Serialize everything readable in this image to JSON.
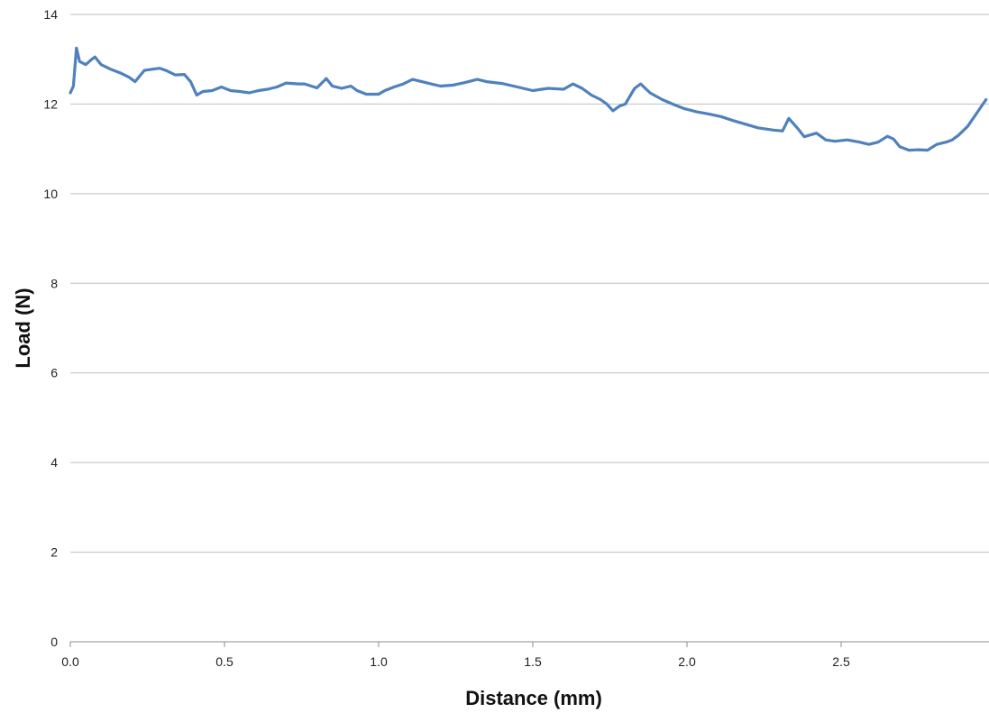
{
  "chart_data": {
    "type": "line",
    "title": "",
    "xlabel": "Distance (mm)",
    "ylabel": "Load (N)",
    "xlim": [
      0,
      2.97
    ],
    "ylim": [
      0,
      14
    ],
    "x_ticks": [
      0.0,
      0.5,
      1.0,
      1.5,
      2.0,
      2.5
    ],
    "x_tick_labels": [
      "0.0",
      "0.5",
      "1.0",
      "1.5",
      "2.0",
      "2.5"
    ],
    "y_ticks": [
      0,
      2,
      4,
      6,
      8,
      10,
      12,
      14
    ],
    "y_tick_labels": [
      "0",
      "2",
      "4",
      "6",
      "8",
      "10",
      "12",
      "14"
    ],
    "grid": "horizontal",
    "legend": "none",
    "line_color": "#4f81bd",
    "grid_color": "#bfbfbf",
    "series": [
      {
        "x": [
          0.0,
          0.01,
          0.02,
          0.03,
          0.05,
          0.07,
          0.08,
          0.1,
          0.13,
          0.16,
          0.19,
          0.21,
          0.24,
          0.29,
          0.31,
          0.34,
          0.37,
          0.39,
          0.41,
          0.43,
          0.46,
          0.49,
          0.52,
          0.55,
          0.58,
          0.61,
          0.64,
          0.67,
          0.7,
          0.74,
          0.76,
          0.8,
          0.83,
          0.85,
          0.88,
          0.91,
          0.93,
          0.96,
          1.0,
          1.02,
          1.05,
          1.08,
          1.11,
          1.14,
          1.17,
          1.2,
          1.24,
          1.28,
          1.32,
          1.35,
          1.4,
          1.45,
          1.5,
          1.55,
          1.6,
          1.63,
          1.66,
          1.69,
          1.72,
          1.74,
          1.76,
          1.78,
          1.8,
          1.83,
          1.85,
          1.88,
          1.92,
          1.96,
          1.99,
          2.03,
          2.07,
          2.11,
          2.15,
          2.19,
          2.23,
          2.28,
          2.31,
          2.33,
          2.36,
          2.38,
          2.42,
          2.45,
          2.48,
          2.52,
          2.56,
          2.59,
          2.62,
          2.65,
          2.67,
          2.69,
          2.72,
          2.75,
          2.78,
          2.81,
          2.84,
          2.86,
          2.88,
          2.91,
          2.94,
          2.96,
          2.97
        ],
        "values": [
          12.25,
          12.4,
          13.25,
          12.95,
          12.88,
          13.0,
          13.05,
          12.88,
          12.78,
          12.7,
          12.6,
          12.5,
          12.75,
          12.8,
          12.75,
          12.65,
          12.66,
          12.5,
          12.2,
          12.28,
          12.3,
          12.38,
          12.3,
          12.28,
          12.25,
          12.3,
          12.33,
          12.38,
          12.47,
          12.45,
          12.45,
          12.36,
          12.57,
          12.4,
          12.35,
          12.4,
          12.3,
          12.22,
          12.22,
          12.3,
          12.38,
          12.45,
          12.55,
          12.5,
          12.45,
          12.4,
          12.42,
          12.48,
          12.55,
          12.5,
          12.46,
          12.38,
          12.3,
          12.35,
          12.33,
          12.45,
          12.35,
          12.2,
          12.1,
          12.0,
          11.85,
          11.95,
          12.0,
          12.35,
          12.45,
          12.25,
          12.1,
          11.98,
          11.9,
          11.83,
          11.78,
          11.72,
          11.63,
          11.55,
          11.47,
          11.42,
          11.4,
          11.68,
          11.45,
          11.27,
          11.35,
          11.2,
          11.17,
          11.2,
          11.15,
          11.1,
          11.15,
          11.28,
          11.22,
          11.05,
          10.97,
          10.98,
          10.97,
          11.1,
          11.15,
          11.2,
          11.3,
          11.5,
          11.8,
          12.0,
          12.1
        ]
      }
    ]
  }
}
